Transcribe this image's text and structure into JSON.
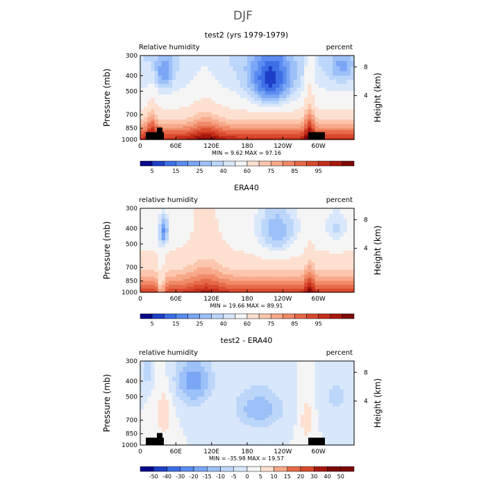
{
  "suptitle": "DJF",
  "colors": {
    "seq": [
      "#08088a",
      "#1e3fc8",
      "#3c6ee6",
      "#5a8cf0",
      "#7aa6f5",
      "#9cc0f8",
      "#bcd6fa",
      "#d9e7fb",
      "#f5f5f5",
      "#fde0d0",
      "#fbc6ad",
      "#f7a98a",
      "#f08a68",
      "#e66a4a",
      "#d84a2e",
      "#c42e1a",
      "#a8180e",
      "#7e0808"
    ],
    "land": "#000000"
  },
  "chart_data": [
    {
      "type": "heatmap",
      "title": "test2 (yrs 1979-1979)",
      "left_label": "Relative humidity",
      "right_label": "percent",
      "ylabel": "Pressure (mb)",
      "y2label": "Height (km)",
      "xticks": [
        "0",
        "60E",
        "120E",
        "180",
        "120W",
        "60W"
      ],
      "xtick_values": [
        0,
        60,
        120,
        180,
        240,
        300
      ],
      "xlim": [
        0,
        360
      ],
      "yticks": [
        "300",
        "400",
        "500",
        "700",
        "850",
        "1000"
      ],
      "ytick_values": [
        300,
        400,
        500,
        700,
        850,
        1000
      ],
      "ylim": [
        300,
        1000
      ],
      "y2ticks": [
        "8",
        "4"
      ],
      "y2tick_values": [
        8,
        4
      ],
      "minmax": "MIN =    9.62   MAX =   97.16",
      "colorbar_labels": [
        "5",
        "15",
        "25",
        "40",
        "60",
        "75",
        "85",
        "95"
      ]
    },
    {
      "type": "heatmap",
      "title": "ERA40",
      "left_label": "relative humidity",
      "right_label": "percent",
      "ylabel": "Pressure (mb)",
      "y2label": "Height (km)",
      "xticks": [
        "0",
        "60E",
        "120E",
        "180",
        "120W",
        "60W"
      ],
      "xtick_values": [
        0,
        60,
        120,
        180,
        240,
        300
      ],
      "xlim": [
        0,
        360
      ],
      "yticks": [
        "300",
        "400",
        "500",
        "700",
        "850",
        "1000"
      ],
      "ytick_values": [
        300,
        400,
        500,
        700,
        850,
        1000
      ],
      "ylim": [
        300,
        1000
      ],
      "y2ticks": [
        "8",
        "4"
      ],
      "y2tick_values": [
        8,
        4
      ],
      "minmax": "MIN =   19.66   MAX =   89.91",
      "colorbar_labels": [
        "5",
        "15",
        "25",
        "40",
        "60",
        "75",
        "85",
        "95"
      ]
    },
    {
      "type": "heatmap",
      "title": "test2 - ERA40",
      "left_label": "relative humidity",
      "right_label": "percent",
      "ylabel": "Pressure (mb)",
      "y2label": "Height (km)",
      "xticks": [
        "0",
        "60E",
        "120E",
        "180",
        "120W",
        "60W"
      ],
      "xtick_values": [
        0,
        60,
        120,
        180,
        240,
        300
      ],
      "xlim": [
        0,
        360
      ],
      "yticks": [
        "300",
        "400",
        "500",
        "700",
        "850",
        "1000"
      ],
      "ytick_values": [
        300,
        400,
        500,
        700,
        850,
        1000
      ],
      "ylim": [
        300,
        1000
      ],
      "y2ticks": [
        "8",
        "4"
      ],
      "y2tick_values": [
        8,
        4
      ],
      "minmax": "MIN =  -35.98   MAX =   19.57",
      "colorbar_labels": [
        "-50",
        "-40",
        "-30",
        "-20",
        "-15",
        "-10",
        "-5",
        "0",
        "5",
        "10",
        "15",
        "20",
        "30",
        "40",
        "50"
      ]
    }
  ]
}
